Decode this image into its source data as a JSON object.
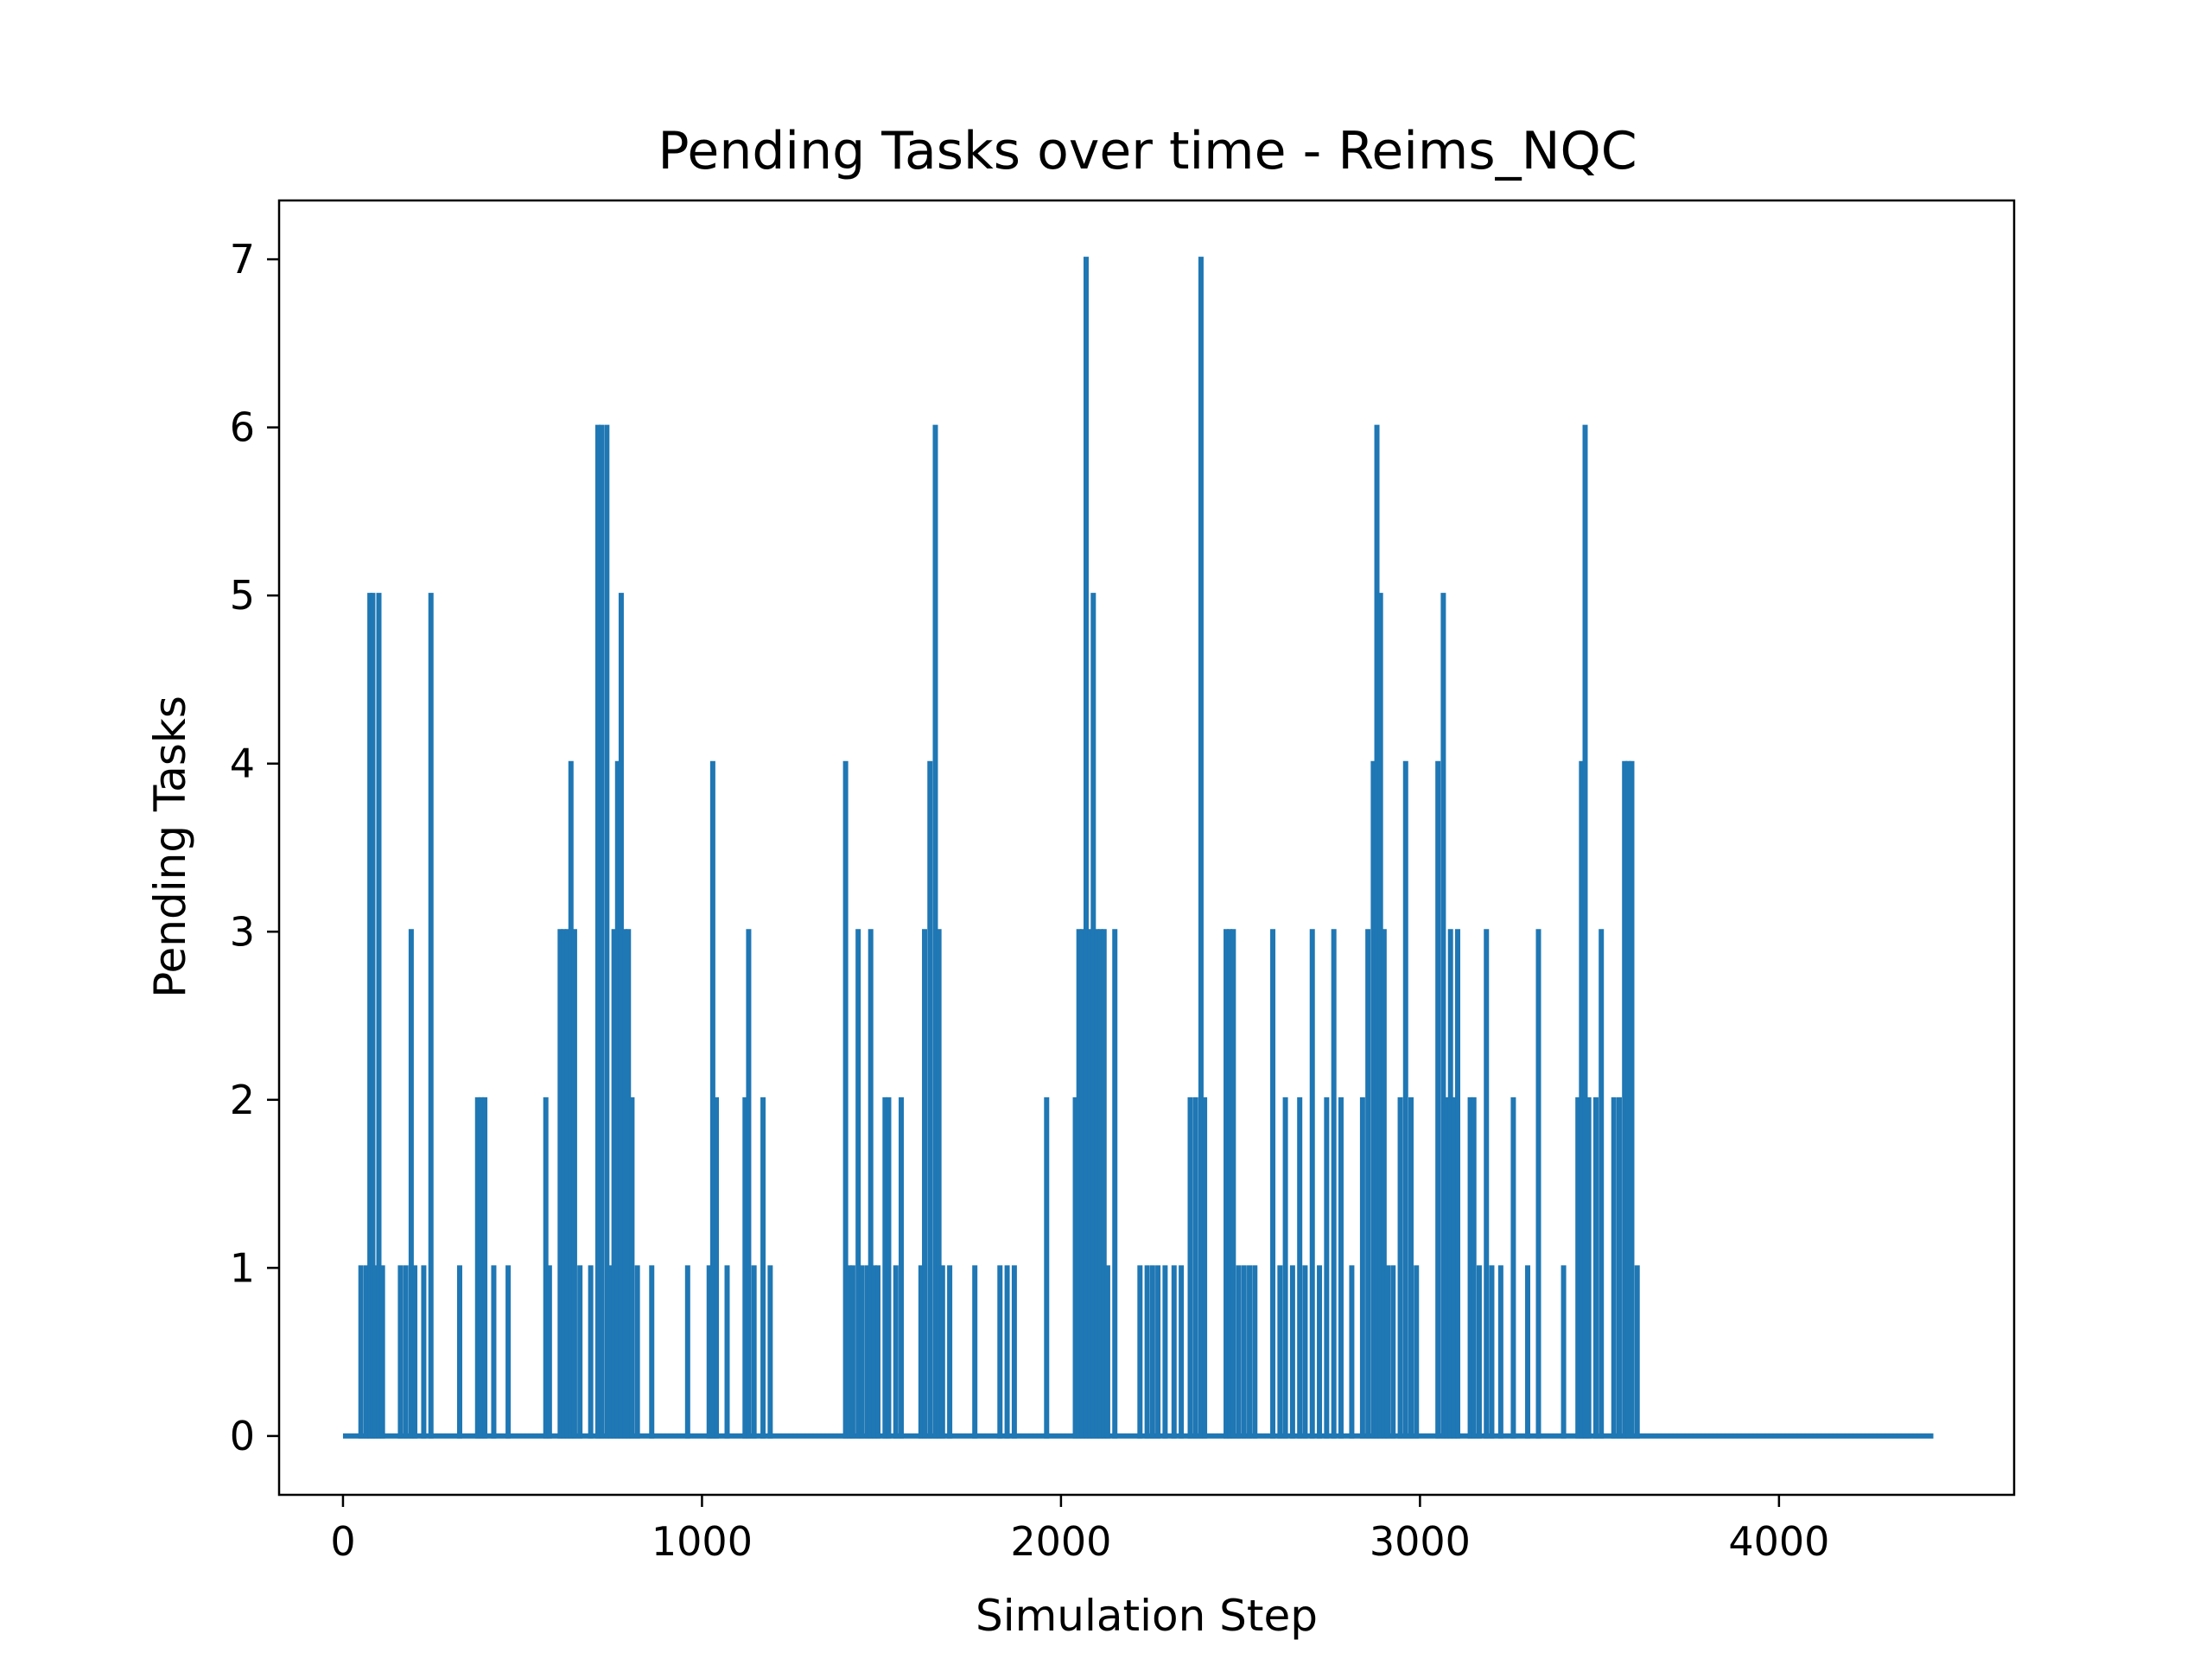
{
  "chart_data": {
    "type": "line",
    "title": "Pending Tasks over time - Reims_NQC",
    "xlabel": "Simulation Step",
    "ylabel": "Pending Tasks",
    "xlim": [
      -178,
      4655
    ],
    "ylim": [
      -0.35,
      7.35
    ],
    "xticks": [
      0,
      1000,
      2000,
      3000,
      4000
    ],
    "yticks": [
      0,
      1,
      2,
      3,
      4,
      5,
      6,
      7
    ],
    "grid": false,
    "legend": "none",
    "colors": {
      "line": "#1f77b4"
    },
    "series": [
      {
        "x_max": 4430,
        "spikes": [
          [
            50,
            1
          ],
          [
            65,
            1
          ],
          [
            75,
            5
          ],
          [
            83,
            5
          ],
          [
            90,
            1
          ],
          [
            100,
            5
          ],
          [
            110,
            1
          ],
          [
            160,
            1
          ],
          [
            175,
            1
          ],
          [
            190,
            3
          ],
          [
            200,
            1
          ],
          [
            225,
            1
          ],
          [
            245,
            5
          ],
          [
            325,
            1
          ],
          [
            375,
            2
          ],
          [
            385,
            2
          ],
          [
            395,
            2
          ],
          [
            420,
            1
          ],
          [
            460,
            1
          ],
          [
            565,
            2
          ],
          [
            575,
            1
          ],
          [
            605,
            3
          ],
          [
            615,
            3
          ],
          [
            625,
            3
          ],
          [
            635,
            4
          ],
          [
            645,
            3
          ],
          [
            660,
            1
          ],
          [
            690,
            1
          ],
          [
            710,
            6
          ],
          [
            720,
            6
          ],
          [
            735,
            6
          ],
          [
            745,
            1
          ],
          [
            755,
            3
          ],
          [
            765,
            4
          ],
          [
            775,
            5
          ],
          [
            785,
            3
          ],
          [
            795,
            3
          ],
          [
            805,
            2
          ],
          [
            820,
            1
          ],
          [
            860,
            1
          ],
          [
            960,
            1
          ],
          [
            1020,
            1
          ],
          [
            1030,
            4
          ],
          [
            1040,
            2
          ],
          [
            1070,
            1
          ],
          [
            1120,
            2
          ],
          [
            1130,
            3
          ],
          [
            1145,
            1
          ],
          [
            1170,
            2
          ],
          [
            1190,
            1
          ],
          [
            1400,
            4
          ],
          [
            1410,
            1
          ],
          [
            1420,
            1
          ],
          [
            1435,
            3
          ],
          [
            1445,
            1
          ],
          [
            1460,
            1
          ],
          [
            1470,
            3
          ],
          [
            1480,
            1
          ],
          [
            1490,
            1
          ],
          [
            1510,
            2
          ],
          [
            1520,
            2
          ],
          [
            1540,
            1
          ],
          [
            1555,
            2
          ],
          [
            1610,
            1
          ],
          [
            1620,
            3
          ],
          [
            1635,
            4
          ],
          [
            1650,
            6
          ],
          [
            1660,
            3
          ],
          [
            1670,
            1
          ],
          [
            1690,
            1
          ],
          [
            1760,
            1
          ],
          [
            1830,
            1
          ],
          [
            1850,
            1
          ],
          [
            1870,
            1
          ],
          [
            1960,
            2
          ],
          [
            2040,
            2
          ],
          [
            2050,
            3
          ],
          [
            2060,
            3
          ],
          [
            2070,
            7
          ],
          [
            2080,
            3
          ],
          [
            2090,
            5
          ],
          [
            2100,
            3
          ],
          [
            2110,
            3
          ],
          [
            2120,
            3
          ],
          [
            2130,
            1
          ],
          [
            2150,
            3
          ],
          [
            2220,
            1
          ],
          [
            2240,
            1
          ],
          [
            2255,
            1
          ],
          [
            2270,
            1
          ],
          [
            2290,
            1
          ],
          [
            2315,
            1
          ],
          [
            2335,
            1
          ],
          [
            2360,
            2
          ],
          [
            2375,
            2
          ],
          [
            2390,
            7
          ],
          [
            2400,
            2
          ],
          [
            2460,
            3
          ],
          [
            2470,
            3
          ],
          [
            2480,
            3
          ],
          [
            2495,
            1
          ],
          [
            2510,
            1
          ],
          [
            2525,
            1
          ],
          [
            2540,
            1
          ],
          [
            2590,
            3
          ],
          [
            2610,
            1
          ],
          [
            2625,
            2
          ],
          [
            2645,
            1
          ],
          [
            2665,
            2
          ],
          [
            2680,
            1
          ],
          [
            2700,
            3
          ],
          [
            2720,
            1
          ],
          [
            2740,
            2
          ],
          [
            2760,
            3
          ],
          [
            2780,
            2
          ],
          [
            2810,
            1
          ],
          [
            2840,
            2
          ],
          [
            2855,
            3
          ],
          [
            2870,
            4
          ],
          [
            2880,
            6
          ],
          [
            2890,
            5
          ],
          [
            2900,
            3
          ],
          [
            2910,
            1
          ],
          [
            2925,
            1
          ],
          [
            2945,
            2
          ],
          [
            2960,
            4
          ],
          [
            2975,
            2
          ],
          [
            2990,
            1
          ],
          [
            3050,
            4
          ],
          [
            3065,
            5
          ],
          [
            3075,
            2
          ],
          [
            3085,
            3
          ],
          [
            3095,
            2
          ],
          [
            3105,
            3
          ],
          [
            3140,
            2
          ],
          [
            3150,
            2
          ],
          [
            3165,
            1
          ],
          [
            3185,
            3
          ],
          [
            3200,
            1
          ],
          [
            3225,
            1
          ],
          [
            3260,
            2
          ],
          [
            3300,
            1
          ],
          [
            3330,
            3
          ],
          [
            3400,
            1
          ],
          [
            3440,
            2
          ],
          [
            3450,
            4
          ],
          [
            3460,
            6
          ],
          [
            3470,
            2
          ],
          [
            3490,
            2
          ],
          [
            3505,
            3
          ],
          [
            3540,
            2
          ],
          [
            3555,
            2
          ],
          [
            3570,
            4
          ],
          [
            3580,
            4
          ],
          [
            3590,
            4
          ],
          [
            3605,
            1
          ]
        ]
      }
    ]
  }
}
